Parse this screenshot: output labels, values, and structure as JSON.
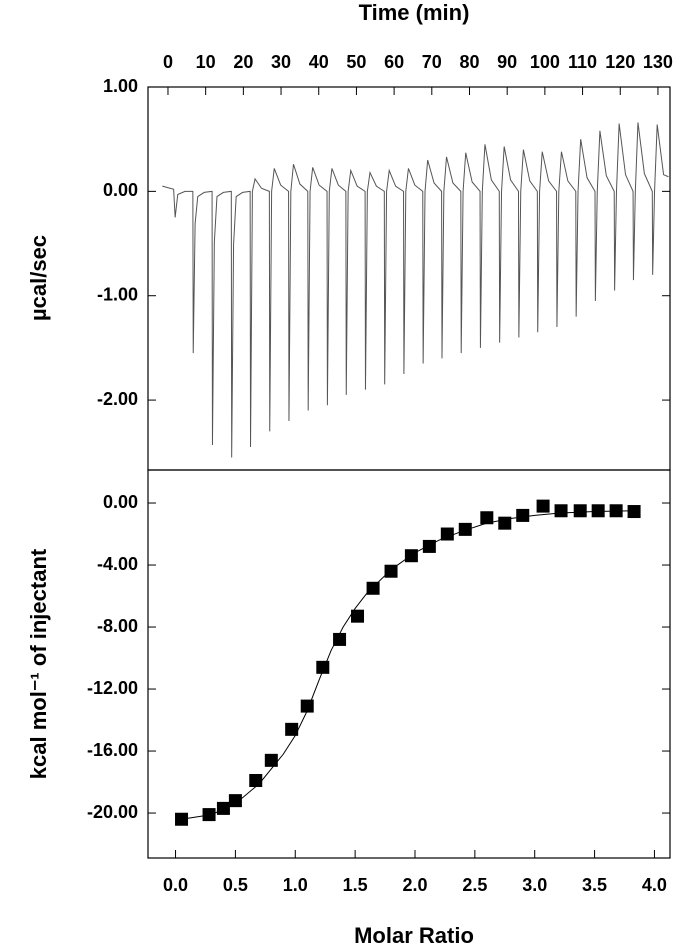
{
  "chart_data": [
    {
      "type": "line",
      "x_label": "Time (min)",
      "y_label": "µcal/sec",
      "color": "#555555",
      "xlim": [
        -5.3,
        133.2
      ],
      "xticks": [
        0,
        10,
        20,
        30,
        40,
        50,
        60,
        70,
        80,
        90,
        100,
        110,
        120,
        130
      ],
      "ylim": [
        -2.67,
        1.0
      ],
      "yticks": [
        {
          "value": 1,
          "label": "1.00"
        },
        {
          "value": 0,
          "label": "0.00"
        },
        {
          "value": -1,
          "label": "-1.00"
        },
        {
          "value": -2,
          "label": "-2.00"
        }
      ],
      "x": [
        -1.5,
        1.5,
        1.9,
        2.6,
        4.5,
        6.6,
        6.7,
        7.2,
        7.9,
        9.6,
        11.7,
        11.8,
        12.3,
        13.0,
        14.7,
        16.8,
        16.9,
        17.4,
        18.1,
        19.8,
        21.8,
        21.9,
        22.4,
        23.1,
        24.8,
        26.9,
        27.0,
        27.5,
        28.2,
        29.9,
        32.0,
        32.1,
        32.6,
        33.3,
        35.0,
        37.1,
        37.2,
        37.7,
        38.4,
        40.1,
        42.2,
        42.3,
        42.8,
        43.5,
        45.2,
        47.2,
        47.3,
        47.8,
        48.5,
        50.2,
        52.3,
        52.4,
        52.9,
        53.6,
        55.3,
        57.4,
        57.5,
        58.0,
        58.7,
        60.4,
        62.5,
        62.6,
        63.1,
        63.8,
        65.5,
        67.6,
        67.7,
        68.2,
        68.9,
        70.6,
        72.6,
        72.7,
        73.2,
        73.9,
        75.6,
        77.7,
        77.8,
        78.3,
        79.0,
        80.7,
        82.8,
        82.9,
        83.4,
        84.1,
        85.8,
        87.9,
        88.0,
        88.5,
        89.2,
        90.9,
        93.0,
        93.1,
        93.6,
        94.3,
        96.0,
        98.0,
        98.1,
        98.6,
        99.3,
        101.0,
        103.1,
        103.2,
        103.7,
        104.4,
        106.1,
        108.2,
        108.3,
        108.8,
        109.5,
        111.2,
        113.3,
        113.4,
        113.9,
        114.6,
        116.3,
        118.4,
        118.5,
        119.0,
        119.7,
        121.4,
        123.4,
        123.5,
        124.0,
        124.7,
        126.4,
        128.5,
        128.6,
        129.1,
        129.8,
        131.5,
        132.8
      ],
      "values": [
        0.05,
        0.02,
        -0.25,
        -0.03,
        0,
        0,
        -1.55,
        -0.31,
        -0.05,
        -0.01,
        0,
        -2.43,
        -0.49,
        -0.05,
        -0.01,
        0,
        -2.55,
        -0.51,
        -0.05,
        -0.01,
        0,
        -2.45,
        0,
        0.12,
        0.03,
        0,
        -2.3,
        0,
        0.22,
        0.06,
        0,
        -2.2,
        0,
        0.26,
        0.07,
        0,
        -2.1,
        0,
        0.23,
        0.06,
        0,
        -2.05,
        0,
        0.22,
        0.06,
        0,
        -1.95,
        0,
        0.2,
        0.05,
        0,
        -1.9,
        0,
        0.18,
        0.05,
        0,
        -1.85,
        0,
        0.2,
        0.05,
        0,
        -1.75,
        0,
        0.22,
        0.06,
        0,
        -1.65,
        0,
        0.3,
        0.08,
        0,
        -1.6,
        0,
        0.33,
        0.08,
        0,
        -1.55,
        0,
        0.37,
        0.09,
        0,
        -1.5,
        0,
        0.45,
        0.11,
        0,
        -1.45,
        0,
        0.43,
        0.11,
        0,
        -1.4,
        0,
        0.4,
        0.1,
        0,
        -1.35,
        0,
        0.38,
        0.1,
        0,
        -1.3,
        0,
        0.38,
        0.1,
        0,
        -1.2,
        0,
        0.5,
        0.13,
        0,
        -1.05,
        0,
        0.58,
        0.15,
        0,
        -0.95,
        0,
        0.65,
        0.16,
        0,
        -0.85,
        0,
        0.66,
        0.17,
        0,
        -0.8,
        0,
        0.64,
        0.16,
        0.14
      ]
    },
    {
      "type": "scatter",
      "x_label": "Molar Ratio",
      "y_label": "kcal mol⁻¹ of injectant",
      "xlim": [
        -0.23,
        4.13
      ],
      "xticks": [
        {
          "value": 0,
          "label": "0.0"
        },
        {
          "value": 0.5,
          "label": "0.5"
        },
        {
          "value": 1,
          "label": "1.0"
        },
        {
          "value": 1.5,
          "label": "1.5"
        },
        {
          "value": 2,
          "label": "2.0"
        },
        {
          "value": 2.5,
          "label": "2.5"
        },
        {
          "value": 3,
          "label": "3.0"
        },
        {
          "value": 3.5,
          "label": "3.5"
        },
        {
          "value": 4,
          "label": "4.0"
        }
      ],
      "ylim": [
        -22.9,
        2.13
      ],
      "yticks": [
        {
          "value": 0,
          "label": "0.00"
        },
        {
          "value": -4,
          "label": "-4.00"
        },
        {
          "value": -8,
          "label": "-8.00"
        },
        {
          "value": -12,
          "label": "-12.00"
        },
        {
          "value": -16,
          "label": "-16.00"
        },
        {
          "value": -20,
          "label": "-20.00"
        }
      ],
      "series": [
        {
          "type": "scatter",
          "color": "#000000",
          "x": [
            0.05,
            0.28,
            0.4,
            0.5,
            0.67,
            0.8,
            0.97,
            1.1,
            1.23,
            1.37,
            1.52,
            1.65,
            1.8,
            1.97,
            2.12,
            2.27,
            2.42,
            2.6,
            2.75,
            2.9,
            3.07,
            3.22,
            3.38,
            3.53,
            3.68,
            3.83
          ],
          "values": [
            -20.4,
            -20.1,
            -19.7,
            -19.2,
            -17.9,
            -16.6,
            -14.6,
            -13.1,
            -10.6,
            -8.8,
            -7.3,
            -5.5,
            -4.4,
            -3.4,
            -2.8,
            -2.0,
            -1.7,
            -0.95,
            -1.3,
            -0.8,
            -0.2,
            -0.5,
            -0.5,
            -0.5,
            -0.5,
            -0.55
          ]
        },
        {
          "type": "line",
          "color": "#000000",
          "x": [
            0.05,
            0.3,
            0.5,
            0.7,
            0.9,
            1.0,
            1.1,
            1.2,
            1.3,
            1.4,
            1.5,
            1.6,
            1.8,
            2.0,
            2.2,
            2.4,
            2.6,
            2.8,
            3.0,
            3.2,
            3.5,
            3.83
          ],
          "values": [
            -20.4,
            -20.1,
            -19.4,
            -18.1,
            -16.2,
            -15.0,
            -13.4,
            -11.4,
            -9.5,
            -8.0,
            -6.8,
            -5.8,
            -4.3,
            -3.2,
            -2.4,
            -1.8,
            -1.3,
            -1.0,
            -0.8,
            -0.65,
            -0.55,
            -0.5
          ]
        }
      ]
    }
  ]
}
